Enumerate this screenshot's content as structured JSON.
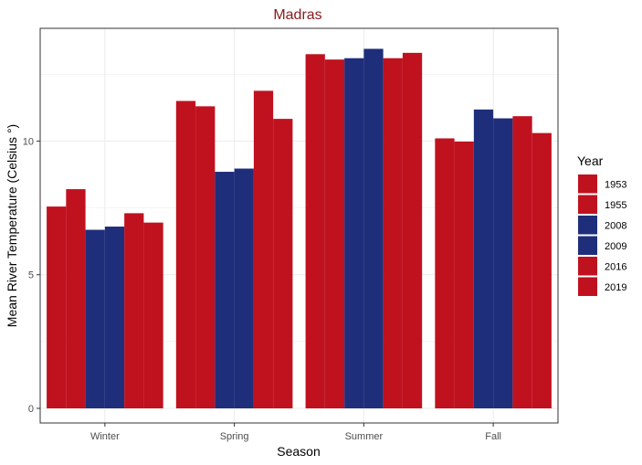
{
  "chart_data": {
    "type": "bar",
    "title": "Madras",
    "xlabel": "Season",
    "ylabel": "Mean River Temperature (Celsius °)",
    "categories": [
      "Winter",
      "Spring",
      "Summer",
      "Fall"
    ],
    "series": [
      {
        "name": "1953",
        "values": [
          7.55,
          11.5,
          13.25,
          10.1
        ],
        "color": "#c0111f"
      },
      {
        "name": "1955",
        "values": [
          8.2,
          11.3,
          13.05,
          9.98
        ],
        "color": "#c0111f"
      },
      {
        "name": "2008",
        "values": [
          6.68,
          8.85,
          13.1,
          11.18
        ],
        "color": "#1f2e7a"
      },
      {
        "name": "2009",
        "values": [
          6.8,
          8.97,
          13.45,
          10.85
        ],
        "color": "#1f2e7a"
      },
      {
        "name": "2016",
        "values": [
          7.3,
          11.88,
          13.1,
          10.93
        ],
        "color": "#c0111f"
      },
      {
        "name": "2019",
        "values": [
          6.95,
          10.83,
          13.3,
          10.3
        ],
        "color": "#c0111f"
      }
    ],
    "ylim": [
      0,
      14.0
    ],
    "yticks": [
      0,
      5,
      10
    ],
    "grid": true,
    "legend_title": "Year",
    "legend_position": "right",
    "title_color": "#8b1a1a"
  }
}
